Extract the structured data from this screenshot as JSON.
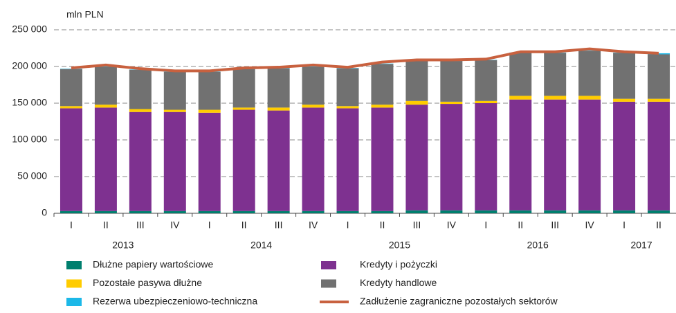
{
  "chart_data": {
    "type": "bar",
    "stacked": true,
    "y_label": "mln PLN",
    "groups": [
      {
        "label": "2013",
        "categories": [
          "I",
          "II",
          "III",
          "IV"
        ]
      },
      {
        "label": "2014",
        "categories": [
          "I",
          "II",
          "III",
          "IV"
        ]
      },
      {
        "label": "2015",
        "categories": [
          "I",
          "II",
          "III",
          "IV"
        ]
      },
      {
        "label": "2016",
        "categories": [
          "I",
          "II",
          "III",
          "IV"
        ]
      },
      {
        "label": "2017",
        "categories": [
          "I",
          "II"
        ]
      }
    ],
    "series": [
      {
        "name": "Dłużne papiery wartościowe",
        "color": "#007f6e",
        "values": [
          3000,
          3000,
          3000,
          3000,
          3000,
          3000,
          3000,
          3000,
          3000,
          3000,
          4000,
          4000,
          4000,
          4000,
          4000,
          4000,
          4000,
          4000
        ]
      },
      {
        "name": "Kredyty i pożyczki",
        "color": "#7e3190",
        "values": [
          140000,
          141000,
          135000,
          135000,
          134000,
          138000,
          137000,
          141000,
          140000,
          141000,
          144000,
          145000,
          146000,
          151000,
          151000,
          151000,
          148000,
          148000
        ]
      },
      {
        "name": "Pozostałe pasywa dłużne",
        "color": "#ffcc00",
        "values": [
          3000,
          4000,
          4000,
          3000,
          4000,
          3000,
          4000,
          4000,
          3000,
          4000,
          5000,
          3000,
          3000,
          5000,
          5000,
          5000,
          4000,
          4000
        ]
      },
      {
        "name": "Kredyty handlowe",
        "color": "#717171",
        "values": [
          50500,
          51500,
          53500,
          51500,
          51500,
          52500,
          53500,
          51500,
          51500,
          55500,
          54500,
          55500,
          55500,
          58500,
          58500,
          61500,
          62500,
          60500
        ]
      },
      {
        "name": "Rezerwa ubezpieczeniowo-techniczna",
        "color": "#1cb8e8",
        "values": [
          500,
          500,
          500,
          500,
          500,
          500,
          500,
          500,
          500,
          500,
          500,
          500,
          500,
          500,
          500,
          500,
          500,
          1500
        ]
      }
    ],
    "line": {
      "name": "Zadłużenie zagraniczne pozostałych sektorów",
      "color": "#c8613f",
      "values": [
        198000,
        202000,
        197000,
        194000,
        194000,
        198000,
        199000,
        202000,
        199000,
        206000,
        209000,
        209000,
        210000,
        220000,
        220000,
        224000,
        220000,
        218000
      ]
    },
    "ylim": [
      0,
      250000
    ],
    "yticks": [
      0,
      {
        "value": 50000,
        "label": "50 000"
      },
      {
        "value": 100000,
        "label": "100 000"
      },
      {
        "value": 150000,
        "label": "150 000"
      },
      {
        "value": 200000,
        "label": "200 000"
      },
      {
        "value": 250000,
        "label": "250 000"
      }
    ],
    "grid": true
  }
}
